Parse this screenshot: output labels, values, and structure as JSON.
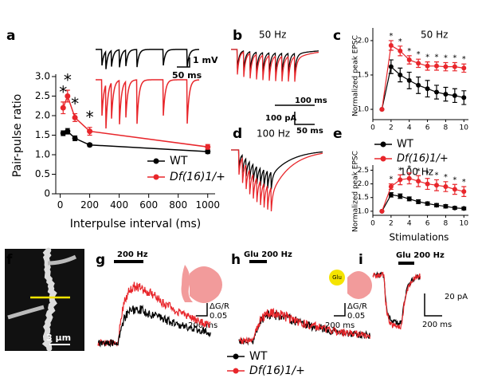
{
  "chart_data": [
    {
      "type": "line",
      "xlabel": "Interpulse interval (ms)",
      "ylabel": "Pair-pulse ratio",
      "x": [
        20,
        50,
        100,
        200,
        1000
      ],
      "xlim": [
        -30,
        1050
      ],
      "xticks": [
        0,
        200,
        400,
        600,
        800,
        1000
      ],
      "ylim": [
        0,
        3.0
      ],
      "yticks": [
        0,
        {
          "value": 0.5,
          "label": "0.5"
        },
        {
          "value": 1,
          "label": "1.0"
        },
        {
          "value": 1.5,
          "label": "1.5"
        },
        {
          "value": 2,
          "label": "2.0"
        },
        {
          "value": 2.5,
          "label": "2.5"
        },
        {
          "value": 3,
          "label": "3.0"
        }
      ],
      "legend": "lower right",
      "annotations": [
        "*",
        "*",
        "*",
        "*",
        null
      ],
      "series": [
        {
          "name": "WT",
          "color": "#000000",
          "values": [
            1.55,
            1.6,
            1.42,
            1.25,
            1.08
          ],
          "errors": [
            0.06,
            0.07,
            0.06,
            0.04,
            0.05
          ]
        },
        {
          "name": "Df(16)1/+",
          "color": "#e8262b",
          "values": [
            2.2,
            2.5,
            1.95,
            1.6,
            1.2
          ],
          "errors": [
            0.15,
            0.15,
            0.1,
            0.1,
            0.06
          ]
        }
      ]
    },
    {
      "type": "line",
      "title": "50 Hz",
      "ylabel": "Normalized peak EPSC",
      "x": [
        1,
        2,
        3,
        4,
        5,
        6,
        7,
        8,
        9,
        10
      ],
      "xlim": [
        0,
        10.5
      ],
      "xticks": [
        0,
        2,
        4,
        6,
        8,
        10
      ],
      "ylim": [
        0.85,
        2.15
      ],
      "yticks": [
        {
          "value": 1,
          "label": "1.0"
        },
        {
          "value": 1.5,
          "label": "1.5"
        },
        {
          "value": 2,
          "label": "2.0"
        }
      ],
      "legend": "below",
      "annotations": [
        null,
        "*",
        "*",
        "*",
        "*",
        "*",
        "*",
        "*",
        "*",
        "*"
      ],
      "series": [
        {
          "name": "WT",
          "color": "#000000",
          "values": [
            1.0,
            1.62,
            1.5,
            1.42,
            1.35,
            1.3,
            1.25,
            1.22,
            1.2,
            1.17
          ],
          "errors": [
            0,
            0.1,
            0.1,
            0.12,
            0.12,
            0.12,
            0.1,
            0.1,
            0.1,
            0.1
          ]
        },
        {
          "name": "Df(16)1/+",
          "color": "#e8262b",
          "values": [
            1.0,
            1.93,
            1.85,
            1.72,
            1.67,
            1.63,
            1.63,
            1.62,
            1.62,
            1.6
          ],
          "errors": [
            0,
            0.07,
            0.07,
            0.06,
            0.06,
            0.06,
            0.06,
            0.06,
            0.06,
            0.06
          ]
        }
      ]
    },
    {
      "type": "line",
      "title": "100 Hz",
      "xlabel": "Stimulations",
      "ylabel": "Normalized peak EPSC",
      "x": [
        1,
        2,
        3,
        4,
        5,
        6,
        7,
        8,
        9,
        10
      ],
      "xlim": [
        0,
        10.5
      ],
      "xticks": [
        0,
        2,
        4,
        6,
        8,
        10
      ],
      "ylim": [
        0.85,
        2.6
      ],
      "yticks": [
        {
          "value": 1,
          "label": "1.0"
        },
        {
          "value": 1.5,
          "label": "1.5"
        },
        {
          "value": 2,
          "label": "2.0"
        },
        {
          "value": 2.5,
          "label": "2.5"
        }
      ],
      "annotations": [
        null,
        "*",
        "*",
        "*",
        "*",
        "*",
        "*",
        "*",
        "*",
        "*"
      ],
      "series": [
        {
          "name": "WT",
          "color": "#000000",
          "values": [
            1.0,
            1.6,
            1.55,
            1.45,
            1.35,
            1.28,
            1.22,
            1.18,
            1.12,
            1.1
          ],
          "errors": [
            0,
            0.08,
            0.08,
            0.07,
            0.07,
            0.06,
            0.06,
            0.06,
            0.05,
            0.05
          ]
        },
        {
          "name": "Df(16)1/+",
          "color": "#e8262b",
          "values": [
            1.0,
            1.9,
            2.15,
            2.2,
            2.1,
            2.0,
            1.95,
            1.9,
            1.8,
            1.72
          ],
          "errors": [
            0,
            0.1,
            0.18,
            0.2,
            0.2,
            0.2,
            0.2,
            0.18,
            0.18,
            0.18
          ]
        }
      ]
    }
  ],
  "figure": {
    "panel_labels": [
      "a",
      "b",
      "c",
      "d",
      "e",
      "f",
      "g",
      "h",
      "i"
    ],
    "a_scale": [
      "1 mV",
      "50 ms"
    ],
    "b_title": "50 Hz",
    "d_title": "100 Hz",
    "bd_scale": [
      "100 ms",
      "100 pA",
      "50 ms"
    ],
    "f_scale": "3 μm",
    "g_stim": "200 Hz",
    "g_scale": [
      "ΔG/R",
      "0.05",
      "200 ms"
    ],
    "h_stim": "Glu 200 Hz",
    "h_icon": "Glu",
    "h_scale": [
      "ΔG/R",
      "0.05",
      "200 ms"
    ],
    "i_stim": "Glu 200 Hz",
    "i_scale": [
      "20 pA",
      "200 ms"
    ]
  }
}
